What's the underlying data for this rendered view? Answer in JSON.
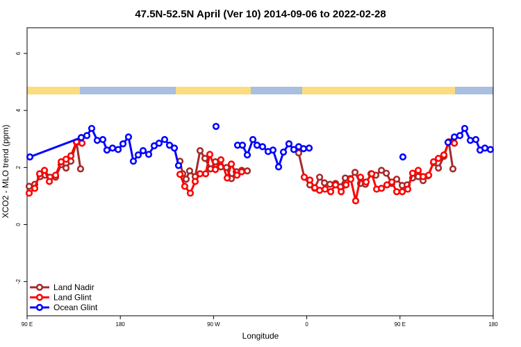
{
  "chart_data": {
    "type": "line",
    "title": "47.5N-52.5N April (Ver 10)   2014-09-06 to 2022-02-28",
    "x_label": "Longitude",
    "y_label": "XCO2 - MLO trend (ppm)",
    "xlim": [
      90,
      540
    ],
    "ylim": [
      -3.2,
      6.9
    ],
    "xticks": [
      {
        "value": 90,
        "label": "90 E"
      },
      180,
      {
        "value": 270,
        "label": "90 W"
      },
      {
        "value": 360,
        "label": "0"
      },
      {
        "value": 450,
        "label": "90 E"
      },
      {
        "value": 540,
        "label": "180"
      }
    ],
    "yticks": [
      -2,
      0,
      2,
      4,
      6
    ],
    "legend": "bottomleft",
    "series": [
      {
        "name": "Land Nadir",
        "color": "#a52a2a",
        "x": [
          92.0,
          97.4,
          102.7,
          107.4,
          112.1,
          117.5,
          122.9,
          127.6,
          132.3,
          137.7,
          141.6,
          null,
          237.6,
          240.2,
          243.6,
          246.9,
          252.3,
          257.0,
          261.7,
          267.1,
          271.8,
          277.1,
          282.5,
          287.2,
          291.9,
          297.2,
          302.6,
          null,
          352.2,
          357.6,
          363.0,
          367.7,
          372.4,
          377.1,
          382.4,
          387.8,
          392.5,
          397.2,
          401.9,
          406.6,
          411.9,
          416.6,
          422.0,
          426.7,
          432.1,
          436.8,
          442.1,
          446.8,
          452.2,
          456.9,
          462.2,
          467.6,
          472.3,
          477.0,
          482.4,
          487.1,
          492.4,
          497.1,
          501.1
        ],
        "values": [
          1.34,
          1.41,
          1.68,
          1.73,
          1.66,
          1.66,
          2.1,
          1.98,
          2.22,
          2.88,
          1.95,
          null,
          2.22,
          1.78,
          1.59,
          1.88,
          1.68,
          2.59,
          2.32,
          1.95,
          2.2,
          2.02,
          2.0,
          1.61,
          1.85,
          1.9,
          1.88,
          null,
          2.51,
          1.66,
          1.39,
          1.27,
          1.66,
          1.46,
          1.41,
          1.44,
          1.32,
          1.63,
          1.61,
          1.83,
          1.44,
          1.41,
          1.78,
          1.73,
          1.9,
          1.8,
          1.44,
          1.59,
          1.37,
          1.39,
          1.63,
          1.68,
          1.54,
          1.71,
          2.17,
          1.98,
          2.39,
          2.9,
          1.95
        ]
      },
      {
        "name": "Land Glint",
        "color": "#ff0000",
        "x": [
          92.0,
          97.4,
          102.1,
          106.8,
          111.5,
          117.5,
          122.9,
          127.6,
          132.3,
          137.7,
          143.0,
          null,
          237.6,
          242.2,
          247.6,
          252.3,
          257.0,
          262.4,
          266.4,
          271.8,
          277.1,
          283.2,
          287.2,
          292.6,
          297.2,
          null,
          357.6,
          363.0,
          367.7,
          372.4,
          377.7,
          383.1,
          387.8,
          393.2,
          397.9,
          402.5,
          407.2,
          411.9,
          417.3,
          422.7,
          427.4,
          432.1,
          437.4,
          442.1,
          446.8,
          452.2,
          457.5,
          462.2,
          467.6,
          472.3,
          477.7,
          482.4,
          487.1,
          492.4,
          497.1,
          502.5
        ],
        "values": [
          1.1,
          1.27,
          1.78,
          1.9,
          1.51,
          1.73,
          2.2,
          2.29,
          2.41,
          2.9,
          2.85,
          null,
          1.76,
          1.34,
          1.1,
          1.51,
          1.78,
          1.78,
          2.46,
          1.93,
          2.27,
          1.63,
          2.12,
          1.73,
          1.85,
          null,
          1.66,
          1.56,
          1.29,
          1.2,
          1.24,
          1.15,
          1.39,
          1.15,
          1.39,
          1.59,
          0.83,
          1.66,
          1.49,
          1.78,
          1.24,
          1.27,
          1.39,
          1.49,
          1.15,
          1.15,
          1.24,
          1.8,
          1.9,
          1.68,
          1.73,
          2.2,
          2.32,
          2.44,
          2.9,
          2.85
        ]
      },
      {
        "name": "Ocean Glint",
        "color": "#0000ff",
        "x": [
          92.7,
          142.3,
          147.7,
          152.4,
          157.7,
          163.1,
          167.1,
          172.5,
          177.9,
          182.6,
          187.9,
          192.6,
          197.3,
          202.0,
          207.4,
          212.7,
          217.4,
          222.8,
          227.5,
          232.2,
          236.2,
          null,
          272.4,
          null,
          293.2,
          297.9,
          302.6,
          308.0,
          312.0,
          317.3,
          322.7,
          327.4,
          332.8,
          337.5,
          342.8,
          347.5,
          352.2,
          356.9,
          362.3,
          null,
          452.8,
          null,
          496.4,
          502.5,
          507.8,
          512.5,
          517.9,
          523.2,
          527.3,
          532.0,
          537.3
        ],
        "values": [
          2.37,
          3.05,
          3.12,
          3.37,
          2.95,
          2.98,
          2.61,
          2.68,
          2.63,
          2.83,
          3.07,
          2.22,
          2.44,
          2.59,
          2.46,
          2.76,
          2.85,
          2.98,
          2.78,
          2.68,
          2.07,
          null,
          3.44,
          null,
          2.78,
          2.78,
          2.44,
          2.98,
          2.78,
          2.73,
          2.56,
          2.61,
          2.02,
          2.54,
          2.83,
          2.63,
          2.73,
          2.66,
          2.68,
          null,
          2.37,
          null,
          2.88,
          3.07,
          3.12,
          3.37,
          2.95,
          2.98,
          2.61,
          2.68,
          2.63
        ]
      }
    ]
  }
}
